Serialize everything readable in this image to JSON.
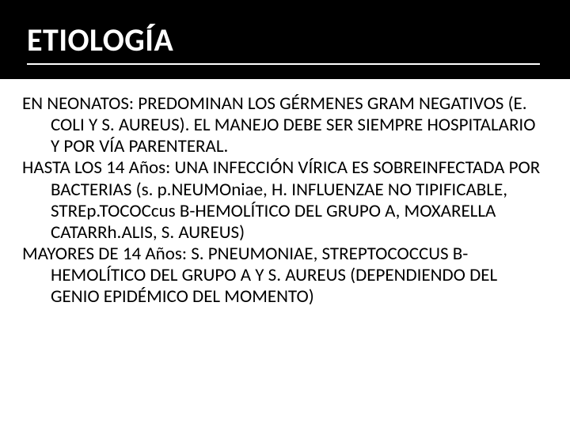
{
  "slide": {
    "title": "ETIOLOGÍA",
    "title_color": "#ffffff",
    "title_band_color": "#000000",
    "title_fontsize": 40,
    "underline_color": "#ffffff",
    "body_fontsize": 23,
    "body_color": "#000000",
    "background_color": "#ffffff",
    "paragraphs": [
      "EN NEONATOS: PREDOMINAN LOS GÉRMENES GRAM NEGATIVOS (E. COLI Y S. AUREUS). EL MANEJO DEBE SER SIEMPRE HOSPITALARIO Y POR VÍA PARENTERAL.",
      "HASTA LOS 14 Años: UNA INFECCIÓN VÍRICA ES SOBREINFECTADA POR BACTERIAS (s. p.NEUMOniae, H. INFLUENZAE NO TIPIFICABLE,  STREp.TOCOCcus  B-HEMOLÍTICO DEL  GRUPO A, MOXARELLA CATARRh.ALIS, S. AUREUS)",
      "MAYORES DE 14 Años:  S. PNEUMONIAE, STREPTOCOCCUS  B-HEMOLÍTICO DEL GRUPO A Y S. AUREUS (DEPENDIENDO DEL GENIO EPIDÉMICO DEL MOMENTO)"
    ]
  }
}
